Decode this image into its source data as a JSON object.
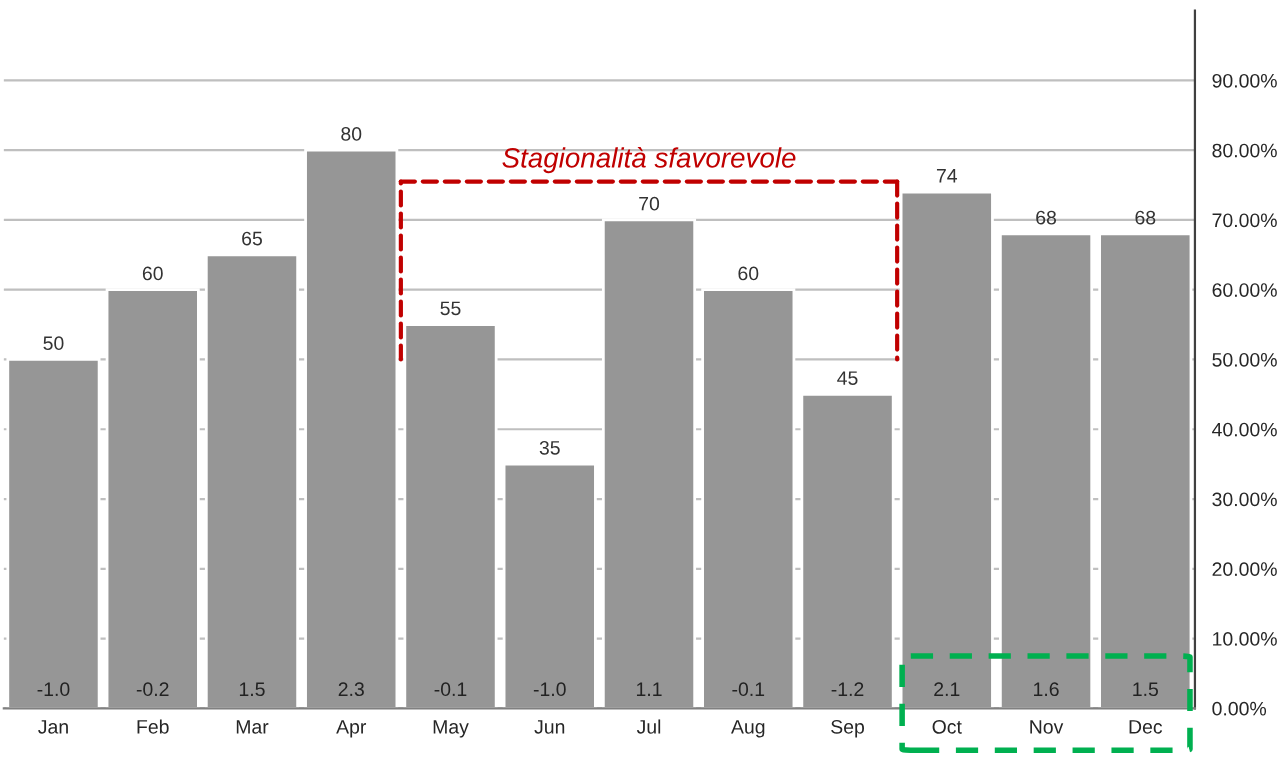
{
  "chart_data": {
    "type": "bar",
    "categories": [
      "Jan",
      "Feb",
      "Mar",
      "Apr",
      "May",
      "Jun",
      "Jul",
      "Aug",
      "Sep",
      "Oct",
      "Nov",
      "Dec"
    ],
    "values": [
      50,
      60,
      65,
      80,
      55,
      35,
      70,
      60,
      45,
      74,
      68,
      68
    ],
    "color": "#969696",
    "data_labels": true,
    "ylim": [
      0,
      100
    ],
    "yticks": [
      {
        "value": 0,
        "label": "0.00%"
      },
      {
        "value": 10,
        "label": "10.00%"
      },
      {
        "value": 20,
        "label": "20.00%"
      },
      {
        "value": 30,
        "label": "30.00%"
      },
      {
        "value": 40,
        "label": "40.00%"
      },
      {
        "value": 50,
        "label": "50.00%"
      },
      {
        "value": 60,
        "label": "60.00%"
      },
      {
        "value": 70,
        "label": "70.00%"
      },
      {
        "value": 80,
        "label": "80.00%"
      },
      {
        "value": 90,
        "label": "90.00%"
      }
    ],
    "grid": "y",
    "annotations": [
      "Stagionalità sfavorevole",
      "-1.0",
      "-0.2",
      "1.5",
      "2.3",
      "-0.1",
      "-1.0",
      "1.1",
      "-0.1",
      "-1.2",
      "2.1",
      "1.6",
      "1.5"
    ]
  }
}
